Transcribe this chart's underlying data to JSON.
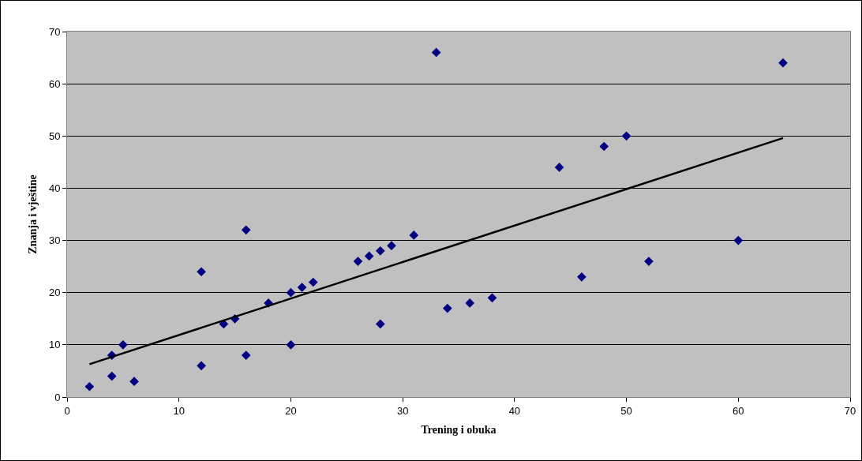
{
  "chart_data": {
    "type": "scatter",
    "xlabel": "Trening i obuka",
    "ylabel": "Znanja i vještine",
    "xlim": [
      0,
      70
    ],
    "xticks": [
      0,
      10,
      20,
      30,
      40,
      50,
      60,
      70
    ],
    "ylim": [
      0,
      70
    ],
    "yticks": [
      0,
      10,
      20,
      30,
      40,
      50,
      60,
      70
    ],
    "grid": "y",
    "legend": false,
    "series": [
      {
        "marker": "diamond",
        "color": "#000080",
        "x": [
          2,
          4,
          4,
          5,
          6,
          12,
          12,
          14,
          15,
          16,
          16,
          18,
          20,
          20,
          21,
          22,
          26,
          27,
          28,
          28,
          29,
          31,
          33,
          34,
          36,
          38,
          44,
          46,
          48,
          50,
          52,
          60,
          64
        ],
        "values": [
          2,
          8,
          4,
          10,
          3,
          24,
          6,
          14,
          15,
          32,
          8,
          18,
          20,
          10,
          21,
          22,
          26,
          27,
          28,
          14,
          29,
          31,
          66,
          17,
          18,
          19,
          44,
          23,
          48,
          50,
          26,
          30,
          64
        ]
      },
      {
        "type": "line",
        "color": "#000000",
        "x": [
          2,
          64
        ],
        "values": [
          6.3,
          49.6
        ]
      }
    ]
  }
}
